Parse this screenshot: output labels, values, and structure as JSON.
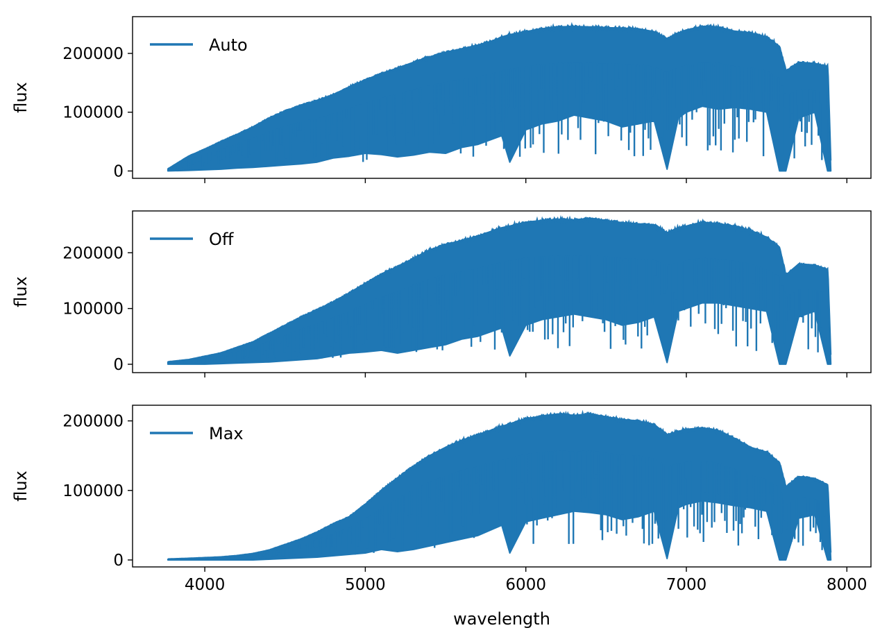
{
  "chart_data": [
    {
      "type": "line",
      "title": "",
      "xlabel": "",
      "ylabel": "flux",
      "xlim": [
        3550,
        8150
      ],
      "ylim": [
        -12500,
        262500
      ],
      "x_ticks": [
        4000,
        5000,
        6000,
        7000,
        8000
      ],
      "x_tick_labels": [
        "",
        "",
        "",
        "",
        ""
      ],
      "y_ticks": [
        0,
        100000,
        200000
      ],
      "y_tick_labels": [
        "0",
        "100000",
        "200000"
      ],
      "legend": {
        "placement": "top-left",
        "entries": [
          "Auto"
        ]
      },
      "grid": false,
      "series": [
        {
          "name": "Auto",
          "color": "#1f77b4",
          "x": [
            3770,
            3900,
            4000,
            4100,
            4200,
            4300,
            4400,
            4500,
            4600,
            4700,
            4800,
            4900,
            5000,
            5100,
            5200,
            5300,
            5400,
            5500,
            5600,
            5700,
            5800,
            5850,
            5900,
            6000,
            6100,
            6200,
            6300,
            6400,
            6500,
            6600,
            6700,
            6800,
            6880,
            6950,
            7000,
            7100,
            7200,
            7300,
            7400,
            7500,
            7580,
            7620,
            7700,
            7800,
            7880,
            7900
          ],
          "envelope_max": [
            3000,
            25000,
            37000,
            50000,
            62000,
            75000,
            90000,
            102000,
            112000,
            120000,
            130000,
            143000,
            155000,
            166000,
            175000,
            185000,
            194000,
            202000,
            208000,
            214000,
            222000,
            228000,
            232000,
            237000,
            242000,
            245000,
            246000,
            245000,
            244000,
            243000,
            242000,
            237000,
            225000,
            235000,
            240000,
            246000,
            245000,
            238000,
            235000,
            228000,
            212000,
            170000,
            185000,
            183000,
            178000,
            0
          ],
          "envelope_min": [
            0,
            1000,
            2000,
            3000,
            5000,
            6000,
            8000,
            10000,
            12000,
            15000,
            22000,
            25000,
            30000,
            28000,
            24000,
            27000,
            32000,
            30000,
            40000,
            45000,
            55000,
            60000,
            15000,
            70000,
            80000,
            85000,
            95000,
            90000,
            85000,
            75000,
            80000,
            85000,
            3000,
            90000,
            100000,
            110000,
            105000,
            108000,
            105000,
            100000,
            0,
            0,
            90000,
            100000,
            0,
            0
          ]
        }
      ]
    },
    {
      "type": "line",
      "title": "",
      "xlabel": "",
      "ylabel": "flux",
      "xlim": [
        3550,
        8150
      ],
      "ylim": [
        -15000,
        275000
      ],
      "x_ticks": [
        4000,
        5000,
        6000,
        7000,
        8000
      ],
      "x_tick_labels": [
        "",
        "",
        "",
        "",
        ""
      ],
      "y_ticks": [
        0,
        100000,
        200000
      ],
      "y_tick_labels": [
        "0",
        "100000",
        "200000"
      ],
      "legend": {
        "placement": "top-left",
        "entries": [
          "Off"
        ]
      },
      "grid": false,
      "series": [
        {
          "name": "Off",
          "color": "#1f77b4",
          "x": [
            3770,
            3900,
            4000,
            4100,
            4200,
            4300,
            4400,
            4500,
            4600,
            4700,
            4800,
            4900,
            5000,
            5100,
            5200,
            5300,
            5400,
            5500,
            5600,
            5700,
            5800,
            5850,
            5900,
            6000,
            6100,
            6200,
            6300,
            6400,
            6500,
            6600,
            6700,
            6800,
            6880,
            6950,
            7000,
            7100,
            7200,
            7300,
            7400,
            7500,
            7580,
            7620,
            7700,
            7800,
            7880,
            7900
          ],
          "envelope_max": [
            4000,
            8000,
            14000,
            20000,
            30000,
            40000,
            55000,
            70000,
            85000,
            98000,
            112000,
            128000,
            145000,
            162000,
            175000,
            190000,
            205000,
            215000,
            222000,
            230000,
            240000,
            245000,
            248000,
            255000,
            258000,
            260000,
            259000,
            262000,
            258000,
            254000,
            252000,
            250000,
            236000,
            245000,
            248000,
            255000,
            252000,
            248000,
            240000,
            228000,
            210000,
            160000,
            180000,
            178000,
            170000,
            0
          ],
          "envelope_min": [
            0,
            0,
            0,
            1000,
            2000,
            3000,
            4000,
            6000,
            8000,
            10000,
            15000,
            20000,
            22000,
            25000,
            20000,
            25000,
            30000,
            35000,
            45000,
            50000,
            60000,
            65000,
            15000,
            70000,
            80000,
            85000,
            90000,
            85000,
            80000,
            70000,
            75000,
            85000,
            3000,
            95000,
            100000,
            110000,
            110000,
            105000,
            100000,
            95000,
            0,
            0,
            85000,
            95000,
            0,
            0
          ]
        }
      ]
    },
    {
      "type": "line",
      "title": "",
      "xlabel": "wavelength",
      "ylabel": "flux",
      "xlim": [
        3550,
        8150
      ],
      "ylim": [
        -10000,
        222500
      ],
      "x_ticks": [
        4000,
        5000,
        6000,
        7000,
        8000
      ],
      "x_tick_labels": [
        "4000",
        "5000",
        "6000",
        "7000",
        "8000"
      ],
      "y_ticks": [
        0,
        100000,
        200000
      ],
      "y_tick_labels": [
        "0",
        "100000",
        "200000"
      ],
      "legend": {
        "placement": "top-left",
        "entries": [
          "Max"
        ]
      },
      "grid": false,
      "series": [
        {
          "name": "Max",
          "color": "#1f77b4",
          "x": [
            3770,
            3900,
            4000,
            4100,
            4200,
            4300,
            4400,
            4500,
            4600,
            4700,
            4800,
            4900,
            5000,
            5100,
            5200,
            5300,
            5400,
            5500,
            5600,
            5700,
            5800,
            5850,
            5900,
            6000,
            6100,
            6200,
            6300,
            6400,
            6500,
            6600,
            6700,
            6800,
            6880,
            6950,
            7000,
            7100,
            7200,
            7300,
            7400,
            7500,
            7580,
            7620,
            7700,
            7800,
            7880,
            7900
          ],
          "envelope_max": [
            1000,
            2000,
            3000,
            4000,
            6000,
            9000,
            14000,
            22000,
            30000,
            40000,
            52000,
            62000,
            80000,
            100000,
            118000,
            135000,
            150000,
            162000,
            172000,
            180000,
            188000,
            192000,
            196000,
            203000,
            207000,
            210000,
            208000,
            210000,
            206000,
            202000,
            200000,
            195000,
            180000,
            185000,
            188000,
            190000,
            186000,
            175000,
            162000,
            155000,
            140000,
            105000,
            120000,
            117000,
            108000,
            0
          ],
          "envelope_min": [
            0,
            0,
            0,
            0,
            0,
            0,
            1000,
            2000,
            3000,
            4000,
            6000,
            8000,
            10000,
            15000,
            12000,
            15000,
            20000,
            25000,
            30000,
            35000,
            45000,
            50000,
            10000,
            55000,
            60000,
            65000,
            70000,
            68000,
            65000,
            58000,
            62000,
            70000,
            2000,
            75000,
            80000,
            85000,
            82000,
            78000,
            75000,
            70000,
            0,
            0,
            60000,
            65000,
            0,
            0
          ]
        }
      ]
    }
  ]
}
